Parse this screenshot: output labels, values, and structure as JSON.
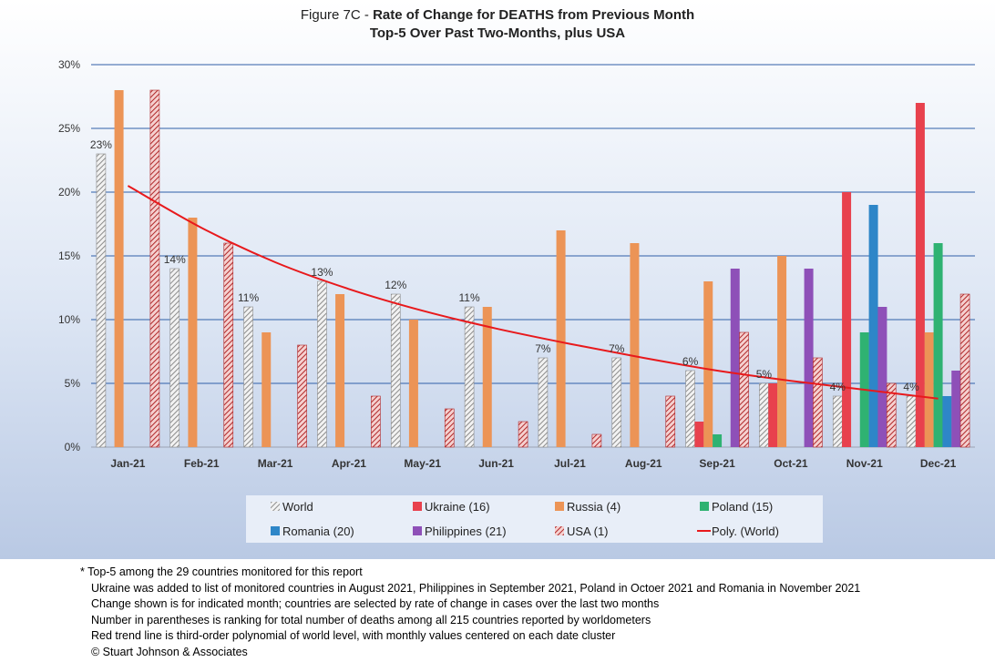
{
  "chart_data": {
    "type": "bar",
    "title_prefix": "Figure 7C - ",
    "title_main": "Rate of Change for DEATHS from Previous Month",
    "subtitle": "Top-5 Over Past Two-Months, plus USA",
    "xlabel": "",
    "ylabel": "",
    "ylim": [
      0,
      0.3
    ],
    "y_ticks": [
      "0%",
      "5%",
      "10%",
      "15%",
      "20%",
      "25%",
      "30%"
    ],
    "grid": true,
    "legend_position": "bottom",
    "categories": [
      "Jan-21",
      "Feb-21",
      "Mar-21",
      "Apr-21",
      "May-21",
      "Jun-21",
      "Jul-21",
      "Aug-21",
      "Sep-21",
      "Oct-21",
      "Nov-21",
      "Dec-21"
    ],
    "series": [
      {
        "name": "World",
        "color": "#d9d9d9",
        "pattern": "hatch-gray",
        "values": [
          0.23,
          0.14,
          0.11,
          0.13,
          0.12,
          0.11,
          0.07,
          0.07,
          0.06,
          0.05,
          0.04,
          0.04
        ],
        "labels": [
          "23%",
          "14%",
          "11%",
          "13%",
          "12%",
          "11%",
          "7%",
          "7%",
          "6%",
          "5%",
          "4%",
          "4%"
        ]
      },
      {
        "name": "Ukraine (16)",
        "color": "#e8414d",
        "values": [
          null,
          null,
          null,
          null,
          null,
          null,
          null,
          null,
          0.02,
          0.05,
          0.2,
          0.27
        ]
      },
      {
        "name": "Russia (4)",
        "color": "#ec9456",
        "values": [
          0.28,
          0.18,
          0.09,
          0.12,
          0.1,
          0.11,
          0.17,
          0.16,
          0.13,
          0.15,
          null,
          0.09
        ]
      },
      {
        "name": "Poland (15)",
        "color": "#2fb272",
        "values": [
          null,
          null,
          null,
          null,
          null,
          null,
          null,
          null,
          0.01,
          null,
          0.09,
          0.16
        ]
      },
      {
        "name": "Romania (20)",
        "color": "#2e86c8",
        "values": [
          null,
          null,
          null,
          null,
          null,
          null,
          null,
          null,
          null,
          null,
          0.19,
          0.04
        ]
      },
      {
        "name": "Philippines (21)",
        "color": "#8e50b8",
        "values": [
          null,
          null,
          null,
          null,
          null,
          null,
          null,
          null,
          0.14,
          0.14,
          0.11,
          0.06
        ]
      },
      {
        "name": "USA (1)",
        "color": "#c0393b",
        "pattern": "hatch-red",
        "values": [
          0.28,
          0.16,
          0.08,
          0.04,
          0.03,
          0.02,
          0.01,
          0.04,
          0.09,
          0.07,
          0.05,
          0.12
        ]
      }
    ],
    "trendline": {
      "name": "Poly. (World)",
      "color": "#e8191c",
      "values": [
        0.205,
        0.172,
        0.145,
        0.124,
        0.107,
        0.093,
        0.081,
        0.07,
        0.06,
        0.052,
        0.045,
        0.038
      ]
    },
    "legend_rows": [
      [
        "World",
        "Ukraine (16)",
        "Russia (4)",
        "Poland (15)"
      ],
      [
        "Romania (20)",
        "Philippines (21)",
        "USA (1)",
        "Poly. (World)"
      ]
    ]
  },
  "notes": {
    "lines": [
      "* Top-5 among the 29 countries monitored for this report",
      "Ukraine was added to list of monitored countries in August 2021, Philippines in September 2021, Poland in Octoer 2021 and Romania in November 2021",
      "Change shown is for indicated month; countries are selected by rate of change in cases over the last two months",
      "Number in parentheses is ranking for total number of deaths among all 215 countries reported by worldometers",
      "Red trend line is third-order polynomial of world level, with monthly values centered on each date cluster",
      "© Stuart Johnson & Associates"
    ]
  }
}
